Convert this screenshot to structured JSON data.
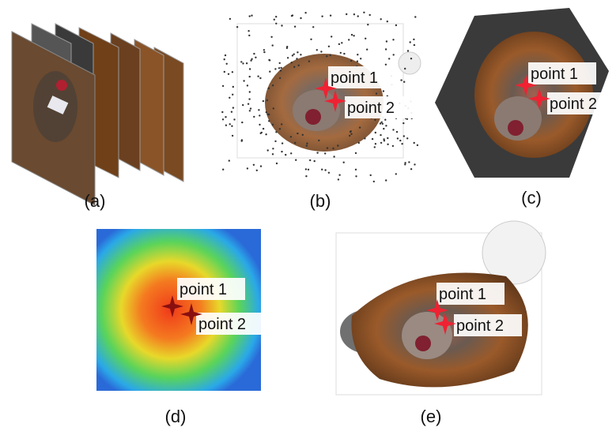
{
  "panels": [
    {
      "label": "(a)"
    },
    {
      "label": "(b)",
      "points": [
        "point 1",
        "point 2"
      ]
    },
    {
      "label": "(c)",
      "points": [
        "point 1",
        "point 2"
      ]
    },
    {
      "label": "(d)",
      "points": [
        "point 1",
        "point 2"
      ]
    },
    {
      "label": "(e)",
      "points": [
        "point 1",
        "point 2"
      ]
    }
  ]
}
